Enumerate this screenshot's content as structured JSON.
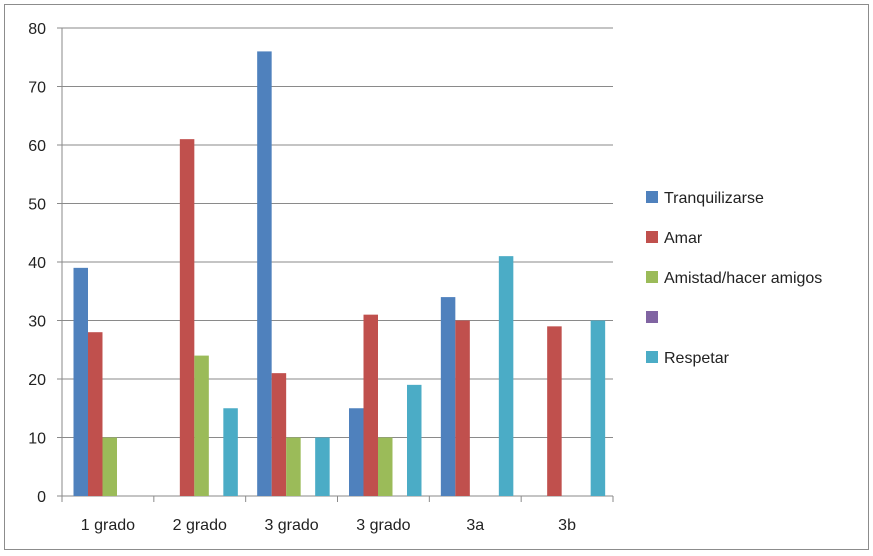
{
  "chart_data": {
    "type": "bar",
    "title": "",
    "xlabel": "",
    "ylabel": "",
    "categories": [
      "1 grado",
      "2 grado",
      "3 grado",
      "3 grado",
      "3a",
      "3b"
    ],
    "ylim": [
      0,
      80
    ],
    "yticks": [
      0,
      10,
      20,
      30,
      40,
      50,
      60,
      70,
      80
    ],
    "grid": true,
    "legend_position": "right",
    "series": [
      {
        "name": "Tranquilizarse",
        "color": "#4F81BD",
        "values": [
          39,
          0,
          76,
          15,
          34,
          0
        ]
      },
      {
        "name": "Amar",
        "color": "#C0504D",
        "values": [
          28,
          61,
          21,
          31,
          30,
          29
        ]
      },
      {
        "name": "Amistad/hacer amigos",
        "color": "#9BBB59",
        "values": [
          10,
          24,
          10,
          10,
          0,
          0
        ]
      },
      {
        "name": "",
        "color": "#8064A2",
        "values": [
          0,
          0,
          0,
          0,
          0,
          0
        ]
      },
      {
        "name": "Respetar",
        "color": "#4BACC6",
        "values": [
          0,
          15,
          10,
          19,
          41,
          30
        ]
      }
    ]
  }
}
